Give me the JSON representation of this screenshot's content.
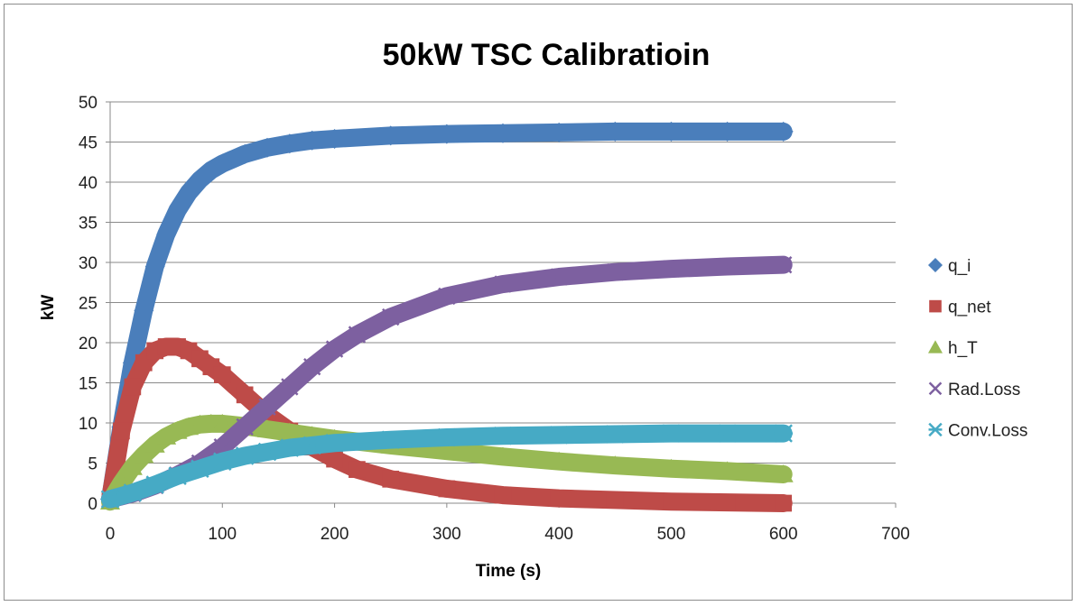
{
  "chart_data": {
    "type": "scatter",
    "title": "50kW TSC Calibratioin",
    "xlabel": "Time (s)",
    "ylabel": "kW",
    "xlim": [
      0,
      700
    ],
    "ylim": [
      0,
      50
    ],
    "xticks": [
      0,
      100,
      200,
      300,
      400,
      500,
      600,
      700
    ],
    "yticks": [
      0,
      5,
      10,
      15,
      20,
      25,
      30,
      35,
      40,
      45,
      50
    ],
    "grid": "horizontal",
    "legend_position": "right",
    "series": [
      {
        "name": "q_i",
        "marker": "diamond",
        "color": "#4a7ebb",
        "x": [
          0,
          10,
          20,
          30,
          40,
          50,
          60,
          70,
          80,
          90,
          100,
          120,
          140,
          160,
          180,
          200,
          250,
          300,
          350,
          400,
          450,
          500,
          550,
          600
        ],
        "y": [
          0.5,
          9.5,
          17.5,
          24,
          29.5,
          33.5,
          36.5,
          38.7,
          40.3,
          41.5,
          42.3,
          43.5,
          44.3,
          44.8,
          45.2,
          45.4,
          45.8,
          46,
          46.1,
          46.2,
          46.3,
          46.3,
          46.3,
          46.3
        ]
      },
      {
        "name": "q_net",
        "marker": "square",
        "color": "#be4b48",
        "x": [
          0,
          10,
          20,
          30,
          40,
          50,
          60,
          70,
          80,
          90,
          100,
          120,
          140,
          160,
          180,
          200,
          220,
          250,
          300,
          350,
          400,
          450,
          500,
          550,
          600
        ],
        "y": [
          0.5,
          9,
          14.5,
          17.5,
          19,
          19.5,
          19.5,
          19,
          18,
          17,
          16,
          13.5,
          11,
          9,
          7,
          5.5,
          4.2,
          3,
          1.8,
          1,
          0.6,
          0.4,
          0.2,
          0.1,
          0
        ]
      },
      {
        "name": "h_T",
        "marker": "triangle",
        "color": "#98b954",
        "x": [
          0,
          10,
          20,
          30,
          40,
          50,
          60,
          70,
          80,
          90,
          100,
          120,
          140,
          160,
          180,
          200,
          250,
          300,
          350,
          400,
          450,
          500,
          550,
          600
        ],
        "y": [
          0.2,
          2.5,
          4.5,
          6,
          7.3,
          8.3,
          9,
          9.5,
          9.8,
          9.9,
          9.9,
          9.6,
          9.2,
          8.8,
          8.4,
          8,
          7.2,
          6.5,
          5.8,
          5.2,
          4.7,
          4.3,
          4,
          3.6
        ]
      },
      {
        "name": "Rad.Loss",
        "marker": "x",
        "color": "#7d60a0",
        "x": [
          0,
          20,
          40,
          60,
          80,
          100,
          120,
          140,
          160,
          180,
          200,
          220,
          250,
          300,
          350,
          400,
          450,
          500,
          550,
          600
        ],
        "y": [
          0.5,
          1.2,
          2.2,
          3.5,
          5,
          7,
          9.5,
          12,
          14.5,
          17,
          19.2,
          21,
          23.2,
          25.8,
          27.3,
          28.2,
          28.8,
          29.2,
          29.5,
          29.7
        ]
      },
      {
        "name": "Conv.Loss",
        "marker": "asterisk",
        "color": "#46aac5",
        "x": [
          0,
          20,
          40,
          60,
          80,
          100,
          120,
          140,
          160,
          180,
          200,
          250,
          300,
          350,
          400,
          450,
          500,
          550,
          600
        ],
        "y": [
          0.5,
          1.3,
          2.3,
          3.4,
          4.3,
          5.2,
          5.9,
          6.4,
          6.9,
          7.2,
          7.5,
          7.9,
          8.2,
          8.4,
          8.5,
          8.6,
          8.7,
          8.7,
          8.7
        ]
      }
    ]
  }
}
